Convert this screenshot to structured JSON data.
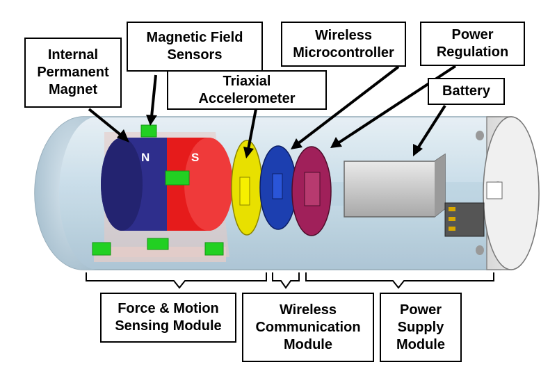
{
  "labels": {
    "internal_magnet": [
      "Internal",
      "Permanent",
      "Magnet"
    ],
    "magnetic_sensors": [
      "Magnetic Field",
      "Sensors"
    ],
    "triaxial_accel": [
      "Triaxial",
      "Accelerometer"
    ],
    "wireless_mcu": [
      "Wireless",
      "Microcontroller"
    ],
    "power_regulation": [
      "Power",
      "Regulation"
    ],
    "battery": [
      "Battery"
    ],
    "force_motion_module": [
      "Force & Motion",
      "Sensing Module"
    ],
    "wireless_comm_module": [
      "Wireless",
      "Communication",
      "Module"
    ],
    "power_supply_module": [
      "Power",
      "Supply",
      "Module"
    ]
  },
  "magnet_poles": {
    "north": "N",
    "south": "S"
  },
  "colors": {
    "capsule_shell": "#c9dde8",
    "magnet_north": "#2e2e8c",
    "magnet_south": "#e61b1b",
    "sensor": "#22d022",
    "accelerometer_board": "#e8e000",
    "mcu_board": "#1c3fb0",
    "power_board": "#a0205a",
    "battery": "#cfcfcf",
    "label_border": "#000000"
  }
}
